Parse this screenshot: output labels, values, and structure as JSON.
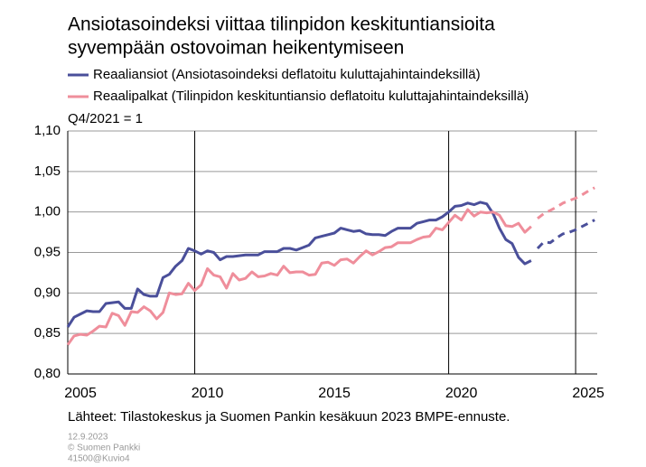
{
  "chart_data": {
    "type": "line",
    "title": [
      "Ansiotasoindeksi viittaa tilinpidon keskituntiansioita",
      "syvempään ostovoiman heikentymiseen"
    ],
    "annotation": "Q4/2021 = 1",
    "source": "Lähteet: Tilastokeskus ja Suomen Pankin kesäkuun 2023 BMPE-ennuste.",
    "footer": [
      "12.9.2023",
      "© Suomen Pankki",
      "41500@Kuvio4"
    ],
    "xlim": [
      2005,
      2025.85
    ],
    "xticks": [
      {
        "value": 2005.5,
        "label": "2005"
      },
      {
        "value": 2010.5,
        "label": "2010"
      },
      {
        "value": 2015.5,
        "label": "2015"
      },
      {
        "value": 2020.5,
        "label": "2020"
      },
      {
        "value": 2025.5,
        "label": "2025"
      }
    ],
    "xlines": [
      2010,
      2020,
      2025
    ],
    "ylim": [
      0.8,
      1.1
    ],
    "yticks": [
      {
        "value": 0.8,
        "label": "0,80"
      },
      {
        "value": 0.85,
        "label": "0,85"
      },
      {
        "value": 0.9,
        "label": "0,90"
      },
      {
        "value": 0.95,
        "label": "0,95"
      },
      {
        "value": 1.0,
        "label": "1,00"
      },
      {
        "value": 1.05,
        "label": "1,05"
      },
      {
        "value": 1.1,
        "label": "1,10"
      }
    ],
    "grid": true,
    "x": [
      2005,
      2005.25,
      2005.5,
      2005.75,
      2006,
      2006.25,
      2006.5,
      2006.75,
      2007,
      2007.25,
      2007.5,
      2007.75,
      2008,
      2008.25,
      2008.5,
      2008.75,
      2009,
      2009.25,
      2009.5,
      2009.75,
      2010,
      2010.25,
      2010.5,
      2010.75,
      2011,
      2011.25,
      2011.5,
      2011.75,
      2012,
      2012.25,
      2012.5,
      2012.75,
      2013,
      2013.25,
      2013.5,
      2013.75,
      2014,
      2014.25,
      2014.5,
      2014.75,
      2015,
      2015.25,
      2015.5,
      2015.75,
      2016,
      2016.25,
      2016.5,
      2016.75,
      2017,
      2017.25,
      2017.5,
      2017.75,
      2018,
      2018.25,
      2018.5,
      2018.75,
      2019,
      2019.25,
      2019.5,
      2019.75,
      2020,
      2020.25,
      2020.5,
      2020.75,
      2021,
      2021.25,
      2021.5,
      2021.75,
      2022,
      2022.25,
      2022.5,
      2022.75,
      2023,
      2023.25,
      2023.5,
      2023.75,
      2024,
      2024.25,
      2024.5,
      2024.75,
      2025,
      2025.25,
      2025.5,
      2025.75
    ],
    "series": [
      {
        "name": "Reaaliansiot (Ansiotasoindeksi deflatoitu kuluttajahintaindeksillä)",
        "color": "#4a4f9a",
        "values": [
          0.858,
          0.87,
          0.874,
          0.878,
          0.877,
          0.877,
          0.887,
          0.888,
          0.889,
          0.881,
          0.881,
          0.905,
          0.898,
          0.896,
          0.896,
          0.919,
          0.923,
          0.933,
          0.94,
          0.955,
          0.952,
          0.948,
          0.952,
          0.95,
          0.941,
          0.945,
          0.945,
          0.946,
          0.947,
          0.947,
          0.947,
          0.951,
          0.951,
          0.951,
          0.955,
          0.955,
          0.953,
          0.956,
          0.959,
          0.968,
          0.97,
          0.972,
          0.974,
          0.98,
          0.978,
          0.976,
          0.977,
          0.973,
          0.972,
          0.972,
          0.971,
          0.976,
          0.98,
          0.98,
          0.98,
          0.986,
          0.988,
          0.99,
          0.99,
          0.994,
          1.0,
          1.007,
          1.008,
          1.011,
          1.009,
          1.012,
          1.01,
          0.998,
          0.98,
          0.966,
          0.961,
          0.944,
          0.936,
          0.94,
          null,
          null,
          null,
          null,
          null,
          null,
          null,
          null,
          null,
          null
        ],
        "forecast": [
          null,
          null,
          null,
          null,
          null,
          null,
          null,
          null,
          null,
          null,
          null,
          null,
          null,
          null,
          null,
          null,
          null,
          null,
          null,
          null,
          null,
          null,
          null,
          null,
          null,
          null,
          null,
          null,
          null,
          null,
          null,
          null,
          null,
          null,
          null,
          null,
          null,
          null,
          null,
          null,
          null,
          null,
          null,
          null,
          null,
          null,
          null,
          null,
          null,
          null,
          null,
          null,
          null,
          null,
          null,
          null,
          null,
          null,
          null,
          null,
          null,
          null,
          null,
          null,
          null,
          null,
          null,
          null,
          null,
          null,
          null,
          null,
          null,
          null,
          0.955,
          0.963,
          0.962,
          0.968,
          0.973,
          0.975,
          0.978,
          0.982,
          0.986,
          0.99
        ]
      },
      {
        "name": "Reaalipalkat (Tilinpidon keskituntiansio deflatoitu kuluttajahintaindeksillä)",
        "color": "#ef8e9b",
        "values": [
          0.836,
          0.847,
          0.849,
          0.848,
          0.853,
          0.859,
          0.858,
          0.875,
          0.872,
          0.86,
          0.877,
          0.876,
          0.883,
          0.878,
          0.868,
          0.876,
          0.9,
          0.898,
          0.899,
          0.912,
          0.903,
          0.91,
          0.93,
          0.922,
          0.92,
          0.906,
          0.924,
          0.916,
          0.918,
          0.926,
          0.92,
          0.921,
          0.924,
          0.922,
          0.933,
          0.925,
          0.926,
          0.926,
          0.922,
          0.923,
          0.937,
          0.938,
          0.934,
          0.941,
          0.942,
          0.937,
          0.945,
          0.952,
          0.947,
          0.951,
          0.956,
          0.957,
          0.962,
          0.962,
          0.962,
          0.966,
          0.969,
          0.97,
          0.98,
          0.978,
          0.987,
          0.996,
          0.99,
          1.003,
          0.995,
          1.0,
          0.999,
          1.0,
          0.996,
          0.983,
          0.982,
          0.986,
          0.975,
          0.982,
          null,
          null,
          null,
          null,
          null,
          null,
          null,
          null,
          null,
          null
        ],
        "forecast": [
          null,
          null,
          null,
          null,
          null,
          null,
          null,
          null,
          null,
          null,
          null,
          null,
          null,
          null,
          null,
          null,
          null,
          null,
          null,
          null,
          null,
          null,
          null,
          null,
          null,
          null,
          null,
          null,
          null,
          null,
          null,
          null,
          null,
          null,
          null,
          null,
          null,
          null,
          null,
          null,
          null,
          null,
          null,
          null,
          null,
          null,
          null,
          null,
          null,
          null,
          null,
          null,
          null,
          null,
          null,
          null,
          null,
          null,
          null,
          null,
          null,
          null,
          null,
          null,
          null,
          null,
          null,
          null,
          null,
          null,
          null,
          null,
          null,
          null,
          0.992,
          0.998,
          1.002,
          1.006,
          1.011,
          1.014,
          1.017,
          1.021,
          1.026,
          1.03
        ]
      }
    ]
  }
}
